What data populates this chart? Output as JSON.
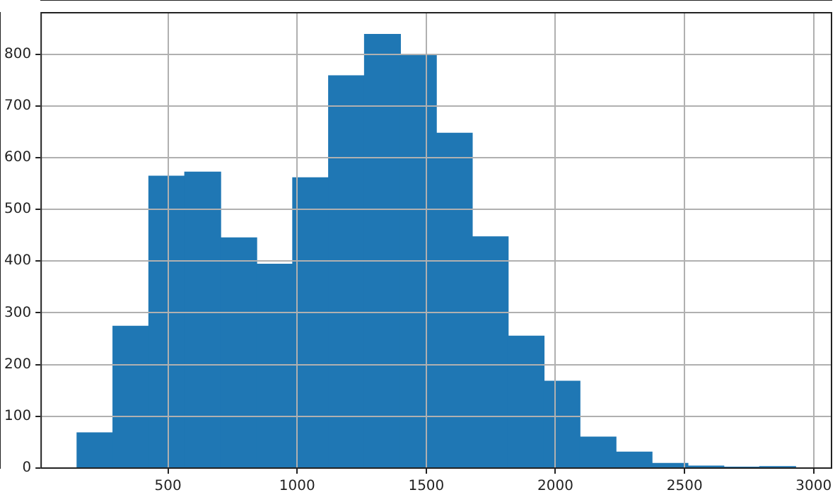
{
  "chart_data": {
    "type": "histogram",
    "bins": [
      148,
      287,
      426,
      565,
      704,
      844,
      983,
      1122,
      1261,
      1400,
      1539,
      1678,
      1817,
      1956,
      2095,
      2235,
      2374,
      2513,
      2652,
      2791,
      2930
    ],
    "values": [
      68,
      274,
      564,
      572,
      445,
      394,
      561,
      758,
      838,
      800,
      647,
      447,
      255,
      168,
      60,
      31,
      9,
      4,
      2,
      3
    ],
    "color": "#1f77b4",
    "xlim": [
      9,
      3069
    ],
    "xticks": [
      500,
      1000,
      1500,
      2000,
      2500,
      3000
    ],
    "ylim": [
      0,
      880
    ],
    "yticks": [
      0,
      100,
      200,
      300,
      400,
      500,
      600,
      700,
      800
    ],
    "grid": true,
    "legend": false
  }
}
